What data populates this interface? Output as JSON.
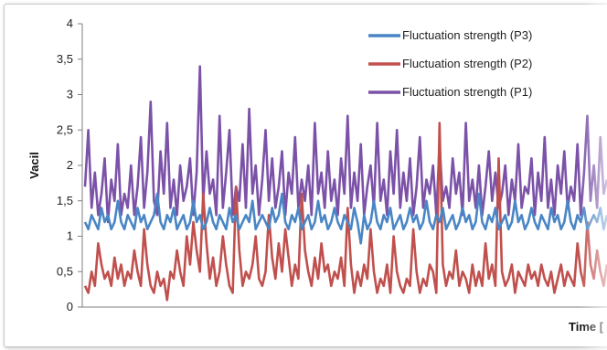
{
  "chart_data": {
    "type": "line",
    "title": "",
    "xlabel": "Time [",
    "ylabel": "Vacil",
    "ylim": [
      0,
      4
    ],
    "yticks": [
      "0",
      "0,5",
      "1",
      "1,5",
      "2",
      "2,5",
      "3",
      "3,5",
      "4"
    ],
    "ytick_values": [
      0,
      0.5,
      1,
      1.5,
      2,
      2.5,
      3,
      3.5,
      4
    ],
    "grid": false,
    "legend_position": "top-right",
    "x": [
      0,
      1,
      2,
      3,
      4,
      5,
      6,
      7,
      8,
      9,
      10,
      11,
      12,
      13,
      14,
      15,
      16,
      17,
      18,
      19,
      20,
      21,
      22,
      23,
      24,
      25,
      26,
      27,
      28,
      29,
      30,
      31,
      32,
      33,
      34,
      35,
      36,
      37,
      38,
      39,
      40,
      41,
      42,
      43,
      44,
      45,
      46,
      47,
      48,
      49,
      50,
      51,
      52,
      53,
      54,
      55,
      56,
      57,
      58,
      59,
      60,
      61,
      62,
      63,
      64,
      65,
      66,
      67,
      68,
      69,
      70,
      71,
      72,
      73,
      74,
      75,
      76,
      77,
      78,
      79,
      80,
      81,
      82,
      83,
      84,
      85,
      86,
      87,
      88,
      89,
      90,
      91,
      92,
      93,
      94,
      95,
      96,
      97,
      98,
      99,
      100,
      101,
      102,
      103,
      104,
      105,
      106,
      107,
      108,
      109,
      110,
      111,
      112,
      113,
      114,
      115,
      116,
      117,
      118,
      119,
      120,
      121,
      122,
      123,
      124,
      125,
      126,
      127,
      128,
      129,
      130,
      131,
      132,
      133,
      134,
      135,
      136,
      137,
      138,
      139,
      140,
      141,
      142,
      143,
      144,
      145,
      146,
      147,
      148,
      149,
      150,
      151,
      152,
      153,
      154,
      155,
      156,
      157,
      158,
      159
    ],
    "series": [
      {
        "name": "Fluctuation strength (P1)",
        "color": "#7b52a8",
        "values": [
          1.7,
          2.5,
          1.4,
          1.9,
          1.3,
          1.6,
          2.1,
          1.2,
          1.8,
          1.5,
          2.3,
          1.3,
          1.6,
          1.4,
          2.0,
          1.3,
          1.7,
          2.4,
          1.4,
          1.9,
          2.9,
          1.5,
          1.3,
          2.2,
          1.6,
          2.6,
          1.4,
          1.8,
          1.3,
          2.0,
          1.5,
          1.7,
          2.1,
          1.3,
          1.9,
          3.4,
          1.5,
          2.2,
          1.6,
          1.8,
          1.3,
          2.7,
          1.4,
          1.9,
          2.5,
          1.3,
          1.7,
          1.5,
          2.3,
          1.4,
          2.8,
          1.6,
          2.0,
          1.3,
          1.8,
          2.5,
          1.5,
          2.1,
          1.4,
          1.7,
          2.2,
          1.3,
          1.9,
          1.6,
          2.4,
          1.4,
          1.8,
          1.5,
          2.0,
          1.3,
          2.6,
          1.6,
          1.9,
          1.4,
          2.2,
          1.5,
          1.8,
          1.3,
          2.1,
          1.6,
          2.7,
          1.4,
          1.9,
          1.5,
          2.3,
          1.3,
          1.7,
          2.0,
          1.4,
          2.6,
          1.5,
          1.8,
          1.3,
          2.2,
          1.6,
          2.5,
          1.4,
          1.9,
          1.5,
          2.1,
          1.3,
          1.7,
          2.4,
          1.4,
          1.8,
          1.6,
          2.0,
          1.3,
          2.3,
          1.5,
          1.7,
          1.4,
          2.1,
          1.6,
          1.9,
          1.3,
          2.6,
          1.5,
          1.8,
          1.4,
          2.0,
          1.3,
          1.7,
          2.2,
          1.5,
          1.9,
          1.4,
          1.6,
          2.0,
          1.3,
          1.8,
          1.5,
          2.3,
          1.4,
          1.7,
          1.6,
          2.1,
          1.3,
          1.9,
          1.5,
          2.4,
          1.4,
          1.8,
          1.3,
          2.0,
          1.6,
          2.2,
          1.4,
          1.7,
          1.5,
          2.3,
          1.3,
          1.9,
          2.7,
          1.5,
          2.0,
          1.4,
          2.4,
          1.6,
          1.8
        ]
      },
      {
        "name": "Fluctuation strength (P2)",
        "color": "#c0504d",
        "values": [
          0.3,
          0.2,
          0.5,
          0.3,
          0.9,
          0.6,
          0.4,
          0.5,
          0.3,
          0.7,
          0.4,
          0.6,
          0.3,
          0.5,
          0.4,
          0.8,
          0.5,
          0.3,
          1.1,
          0.6,
          0.3,
          0.2,
          0.5,
          0.3,
          0.4,
          0.1,
          0.5,
          0.4,
          0.8,
          0.5,
          0.3,
          1.0,
          0.6,
          1.2,
          0.8,
          0.5,
          1.6,
          0.9,
          0.4,
          0.7,
          0.3,
          0.5,
          1.0,
          0.6,
          0.3,
          0.2,
          1.7,
          0.8,
          0.3,
          0.5,
          0.4,
          0.6,
          1.0,
          0.4,
          0.3,
          0.5,
          1.3,
          0.7,
          0.4,
          0.9,
          0.5,
          1.1,
          0.7,
          0.3,
          0.6,
          0.4,
          1.6,
          0.8,
          0.5,
          0.3,
          0.7,
          0.4,
          0.9,
          0.5,
          0.6,
          0.3,
          0.5,
          0.4,
          0.7,
          0.3,
          1.4,
          0.6,
          0.2,
          0.5,
          0.3,
          0.6,
          0.4,
          1.1,
          0.5,
          0.2,
          0.4,
          0.3,
          0.6,
          0.2,
          1.0,
          0.5,
          0.3,
          0.2,
          0.4,
          0.3,
          1.1,
          0.5,
          0.2,
          0.4,
          0.3,
          0.6,
          0.5,
          0.2,
          2.6,
          0.6,
          0.3,
          0.5,
          0.4,
          0.8,
          0.3,
          0.5,
          0.4,
          0.2,
          0.6,
          0.3,
          0.5,
          0.3,
          0.9,
          0.4,
          0.6,
          0.3,
          2.1,
          0.5,
          0.3,
          0.4,
          0.6,
          0.2,
          0.5,
          0.4,
          0.3,
          0.6,
          0.4,
          0.5,
          0.3,
          0.6,
          0.4,
          0.3,
          0.5,
          0.2,
          0.4,
          0.6,
          0.3,
          0.5,
          0.4,
          0.3,
          0.9,
          0.5,
          0.3,
          1.2,
          0.6,
          0.4,
          0.8,
          0.5,
          0.3,
          0.6
        ]
      },
      {
        "name": "Fluctuation strength (P3)",
        "color": "#4a86c5",
        "values": [
          1.2,
          1.1,
          1.3,
          1.2,
          1.1,
          1.4,
          1.2,
          1.3,
          1.1,
          1.2,
          1.5,
          1.2,
          1.1,
          1.3,
          1.2,
          1.1,
          1.4,
          1.2,
          1.3,
          1.1,
          1.2,
          1.3,
          1.6,
          1.2,
          1.1,
          1.3,
          1.2,
          1.4,
          1.1,
          1.2,
          1.3,
          1.1,
          1.2,
          1.5,
          1.2,
          1.3,
          1.1,
          1.2,
          1.4,
          1.2,
          1.1,
          1.3,
          1.2,
          1.1,
          1.4,
          1.2,
          1.3,
          1.1,
          1.2,
          1.3,
          1.2,
          1.5,
          1.1,
          1.2,
          1.3,
          1.2,
          1.1,
          1.4,
          1.2,
          1.3,
          1.6,
          1.2,
          1.1,
          1.3,
          1.2,
          1.4,
          1.1,
          1.2,
          1.3,
          1.1,
          1.2,
          1.5,
          1.2,
          1.3,
          1.1,
          1.2,
          1.4,
          1.2,
          1.1,
          1.3,
          1.2,
          1.1,
          1.4,
          1.2,
          0.9,
          1.3,
          1.1,
          1.2,
          1.5,
          1.2,
          1.1,
          1.3,
          1.2,
          1.4,
          1.1,
          1.2,
          1.3,
          1.1,
          1.2,
          1.4,
          1.2,
          1.3,
          1.1,
          1.2,
          1.5,
          1.2,
          1.1,
          1.3,
          1.2,
          1.4,
          1.1,
          1.2,
          1.3,
          1.1,
          1.2,
          1.4,
          1.2,
          1.3,
          1.1,
          1.2,
          1.6,
          1.2,
          1.1,
          1.3,
          1.2,
          1.4,
          1.1,
          1.2,
          1.3,
          1.1,
          1.2,
          1.5,
          1.2,
          1.3,
          1.1,
          1.2,
          1.4,
          1.2,
          1.1,
          1.3,
          1.2,
          1.1,
          1.4,
          1.2,
          1.3,
          1.1,
          1.2,
          1.5,
          1.2,
          1.1,
          1.3,
          1.2,
          1.4,
          1.1,
          1.2,
          1.3,
          1.2,
          1.4,
          1.1,
          1.3
        ]
      }
    ],
    "legend_order": [
      2,
      1,
      0
    ]
  }
}
